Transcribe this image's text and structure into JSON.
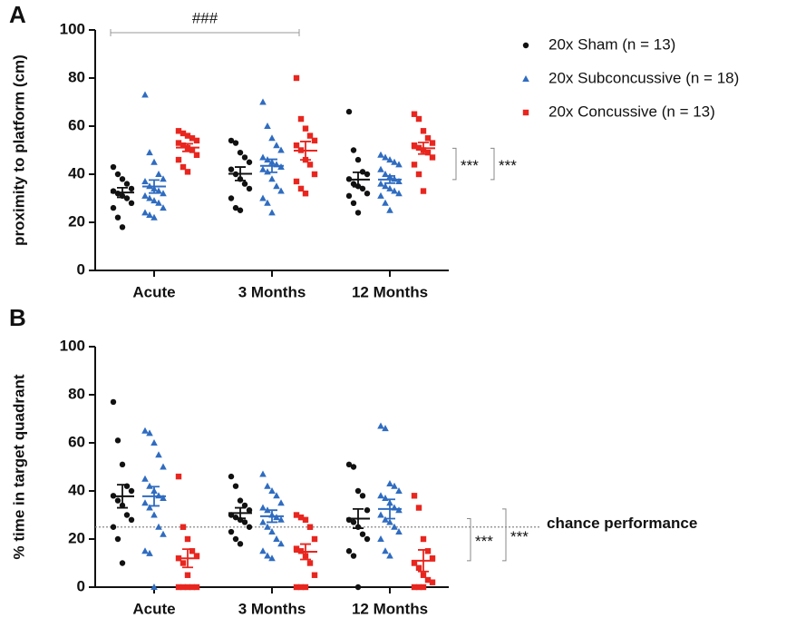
{
  "chart_data": [
    {
      "type": "dotplot",
      "panel_label": "A",
      "y_label": "proximity to platform (cm)",
      "categories": [
        "Acute",
        "3 Months",
        "12 Months"
      ],
      "ylim": [
        0,
        100
      ],
      "yticks": [
        0,
        20,
        40,
        60,
        80,
        100
      ],
      "bracket_label": "###",
      "comparison_labels": [
        "***",
        "***"
      ],
      "series": [
        {
          "name": "20x Sham (n = 13)",
          "color": "#111111",
          "marker": "circle",
          "values": [
            [
              43,
              40,
              38,
              36,
              34,
              33,
              32,
              31,
              30,
              28,
              26,
              22,
              18
            ],
            [
              54,
              53,
              49,
              47,
              45,
              42,
              40,
              38,
              36,
              34,
              30,
              26,
              25
            ],
            [
              66,
              50,
              46,
              41,
              40,
              38,
              36,
              35,
              34,
              32,
              31,
              28,
              24
            ]
          ],
          "means": [
            32.4,
            40.2,
            37.8
          ],
          "sem": [
            2,
            2.8,
            3
          ]
        },
        {
          "name": "20x Subconcussive (n = 18)",
          "color": "#2f6cc0",
          "marker": "triangle",
          "values": [
            [
              73,
              49,
              45,
              40,
              38,
              37,
              35,
              34,
              33,
              32,
              31,
              30,
              29,
              28,
              26,
              24,
              23,
              22
            ],
            [
              70,
              60,
              55,
              52,
              50,
              47,
              46,
              45,
              44,
              43,
              42,
              41,
              38,
              35,
              33,
              30,
              28,
              24
            ],
            [
              48,
              47,
              46,
              45,
              44,
              42,
              40,
              39,
              38,
              37,
              36,
              35,
              34,
              33,
              32,
              31,
              28,
              25
            ]
          ],
          "means": [
            34.9,
            43.5,
            37.8
          ],
          "sem": [
            2.7,
            2.7,
            1.5
          ]
        },
        {
          "name": "20x Concussive (n = 13)",
          "color": "#e8261f",
          "marker": "square",
          "values": [
            [
              58,
              57,
              56,
              55,
              54,
              53,
              52,
              51,
              50,
              48,
              46,
              43,
              41
            ],
            [
              80,
              63,
              59,
              56,
              54,
              52,
              50,
              46,
              44,
              40,
              37,
              34,
              32
            ],
            [
              65,
              63,
              58,
              55,
              53,
              52,
              51,
              50,
              49,
              47,
              44,
              40,
              33
            ]
          ],
          "means": [
            51.1,
            49.8,
            50.8
          ],
          "sem": [
            1.6,
            3.8,
            2.4
          ]
        }
      ]
    },
    {
      "type": "dotplot",
      "panel_label": "B",
      "y_label": "% time in target quadrant",
      "categories": [
        "Acute",
        "3 Months",
        "12 Months"
      ],
      "ylim": [
        0,
        100
      ],
      "yticks": [
        0,
        20,
        40,
        60,
        80,
        100
      ],
      "chance_line": 25,
      "chance_label": "chance performance",
      "comparison_labels": [
        "***",
        "***"
      ],
      "series": [
        {
          "color": "#111111",
          "marker": "circle",
          "values": [
            [
              77,
              61,
              51,
              42,
              40,
              38,
              36,
              34,
              30,
              28,
              25,
              20,
              10
            ],
            [
              46,
              42,
              36,
              34,
              32,
              30,
              29,
              28,
              27,
              25,
              23,
              20,
              18
            ],
            [
              51,
              50,
              40,
              38,
              32,
              28,
              27,
              25,
              22,
              20,
              15,
              13,
              0
            ]
          ],
          "means": [
            37.8,
            30.8,
            28.5
          ],
          "sem": [
            4.8,
            2.2,
            4
          ]
        },
        {
          "color": "#2f6cc0",
          "marker": "triangle",
          "values": [
            [
              65,
              64,
              60,
              55,
              50,
              45,
              42,
              40,
              38,
              37,
              35,
              33,
              30,
              25,
              22,
              15,
              14,
              0
            ],
            [
              47,
              42,
              40,
              38,
              35,
              33,
              32,
              30,
              29,
              28,
              27,
              25,
              23,
              20,
              18,
              15,
              13,
              12
            ],
            [
              67,
              66,
              43,
              42,
              40,
              38,
              37,
              35,
              33,
              32,
              30,
              28,
              27,
              25,
              23,
              20,
              15,
              13
            ]
          ],
          "means": [
            37.8,
            29.5,
            32.5
          ],
          "sem": [
            4,
            2.5,
            4
          ]
        },
        {
          "color": "#e8261f",
          "marker": "square",
          "values": [
            [
              46,
              25,
              20,
              15,
              13,
              12,
              10,
              5,
              0,
              0,
              0,
              0,
              0
            ],
            [
              30,
              29,
              28,
              25,
              20,
              16,
              15,
              13,
              10,
              5,
              0,
              0,
              0
            ],
            [
              38,
              33,
              20,
              15,
              12,
              10,
              8,
              5,
              3,
              2,
              0,
              0,
              0
            ]
          ],
          "means": [
            12,
            14.7,
            11
          ],
          "sem": [
            3.8,
            3.2,
            4.5
          ]
        }
      ]
    }
  ]
}
